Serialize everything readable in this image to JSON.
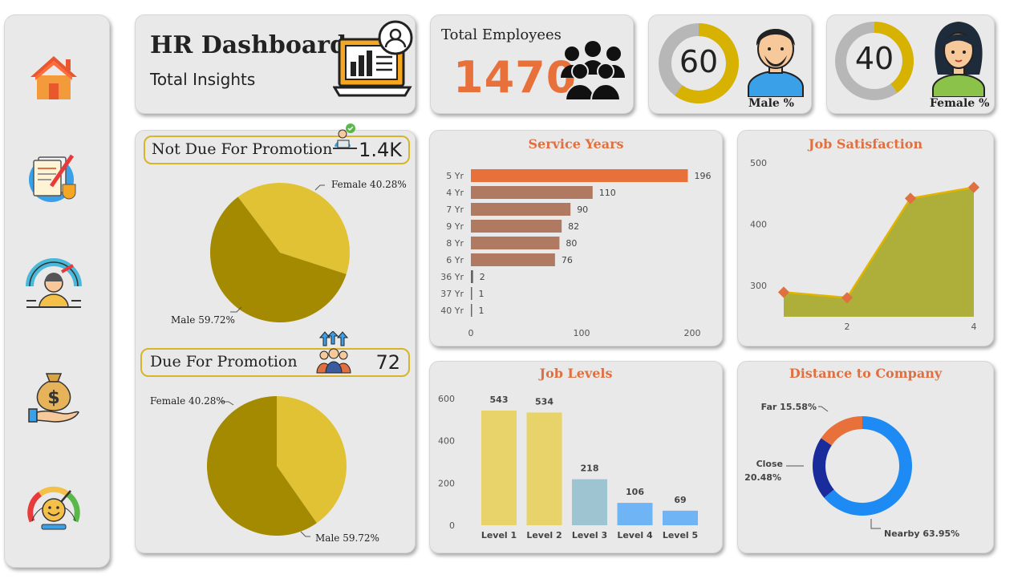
{
  "sidebar": {
    "items": [
      {
        "icon": "home-icon"
      },
      {
        "icon": "document-pen-icon"
      },
      {
        "icon": "employee-performance-icon"
      },
      {
        "icon": "salary-money-bag-icon"
      },
      {
        "icon": "satisfaction-meter-icon"
      }
    ]
  },
  "header": {
    "title": "HR Dashboard",
    "subtitle": "Total Insights",
    "icon": "analytics-monitor-icon"
  },
  "kpi": {
    "total_label": "Total Employees",
    "total_value": "1470",
    "male_value": "60",
    "male_pct": 0.6,
    "male_label": "Male %",
    "female_value": "40",
    "female_pct": 0.4,
    "female_label": "Female %"
  },
  "promotion": {
    "not_due_label": "Not Due For Promotion",
    "not_due_value": "1.4K",
    "due_label": "Due For Promotion",
    "due_value": "72",
    "not_due_pie": {
      "female_label": "Female 40.28%",
      "male_label": "Male 59.72%",
      "female": 40.28,
      "male": 59.72
    },
    "due_pie": {
      "female_label": "Female 40.28%",
      "male_label": "Male 59.72%",
      "female": 40.28,
      "male": 59.72
    }
  },
  "colors": {
    "orange": "#e8703a",
    "brown": "#b07a62",
    "gold": "#e0c234",
    "dark_gold": "#a48a00",
    "olive": "#adaf3a",
    "pale_yellow": "#e8d36a",
    "light_blue": "#9ec4d2",
    "sky_blue": "#6fb4f5",
    "blue": "#1e8bf5",
    "navy": "#1a2b9c",
    "gray_ring": "#b7b7b7"
  },
  "chart_data": [
    {
      "type": "bar",
      "orientation": "horizontal",
      "title": "Service Years",
      "categories": [
        "5 Yr",
        "4 Yr",
        "7 Yr",
        "9 Yr",
        "8 Yr",
        "6 Yr",
        "36 Yr",
        "37 Yr",
        "40 Yr"
      ],
      "values": [
        196,
        110,
        90,
        82,
        80,
        76,
        2,
        1,
        1
      ],
      "xticks": [
        "0",
        "100",
        "200"
      ],
      "xlim": [
        0,
        200
      ]
    },
    {
      "type": "area",
      "title": "Job Satisfaction",
      "x": [
        1,
        2,
        3,
        4
      ],
      "values": [
        289,
        280,
        442,
        460
      ],
      "xticks": [
        "2",
        "4"
      ],
      "yticks": [
        "300",
        "400",
        "500"
      ],
      "ylim": [
        250,
        500
      ]
    },
    {
      "type": "bar",
      "title": "Job Levels",
      "categories": [
        "Level 1",
        "Level 2",
        "Level 3",
        "Level 4",
        "Level 5"
      ],
      "values": [
        543,
        534,
        218,
        106,
        69
      ],
      "yticks": [
        "0",
        "200",
        "400",
        "600"
      ],
      "ylim": [
        0,
        600
      ]
    },
    {
      "type": "pie",
      "donut": true,
      "title": "Distance to Company",
      "categories": [
        "Nearby",
        "Close",
        "Far"
      ],
      "values": [
        63.95,
        20.48,
        15.58
      ],
      "labels": [
        "Nearby 63.95%",
        "Close",
        "20.48%",
        "Far 15.58%"
      ]
    }
  ]
}
